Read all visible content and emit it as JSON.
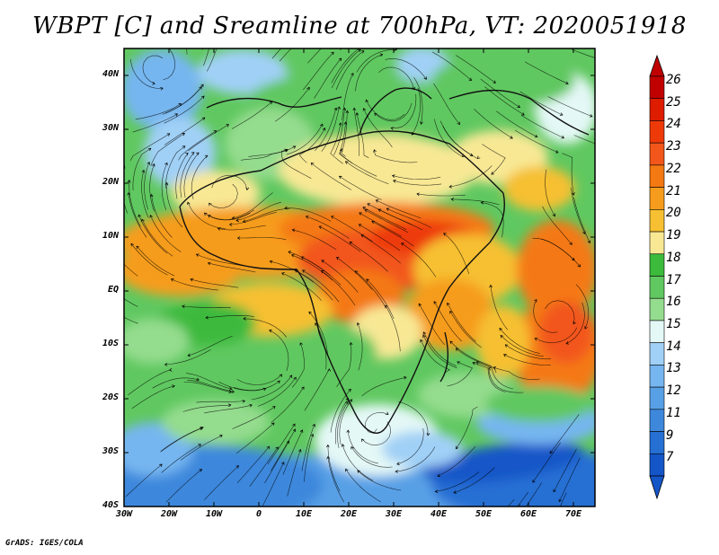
{
  "title": "WBPT [C] and Sreamline at 700hPa, VT: 2020051918",
  "footer": "GrADS: IGES/COLA",
  "map": {
    "variable": "Wet-bulb potential temperature",
    "units": "C",
    "level": "700hPa",
    "valid_time": "2020051918",
    "lat_labels": [
      "40N",
      "30N",
      "20N",
      "10N",
      "EQ",
      "10S",
      "20S",
      "30S",
      "40S"
    ],
    "lon_labels": [
      "30W",
      "20W",
      "10W",
      "0",
      "10E",
      "20E",
      "30E",
      "40E",
      "50E",
      "60E",
      "70E"
    ]
  },
  "colorbar": {
    "levels": [
      "26",
      "25",
      "24",
      "23",
      "22",
      "21",
      "20",
      "19",
      "18",
      "17",
      "16",
      "15",
      "14",
      "13",
      "12",
      "11",
      "9",
      "7"
    ],
    "colors": [
      "#c00000",
      "#dd1c00",
      "#ee3a08",
      "#f2561a",
      "#f47912",
      "#f69c1c",
      "#f6c032",
      "#f8e894",
      "#3cba3c",
      "#60c860",
      "#94dc8e",
      "#e4f8f6",
      "#a0d0f6",
      "#76b6f0",
      "#58a0e6",
      "#3e88dc",
      "#2670d4",
      "#1456c8"
    ]
  },
  "icons": {
    "colorbar_top": "triangle-up-icon",
    "colorbar_bottom": "triangle-down-icon"
  }
}
